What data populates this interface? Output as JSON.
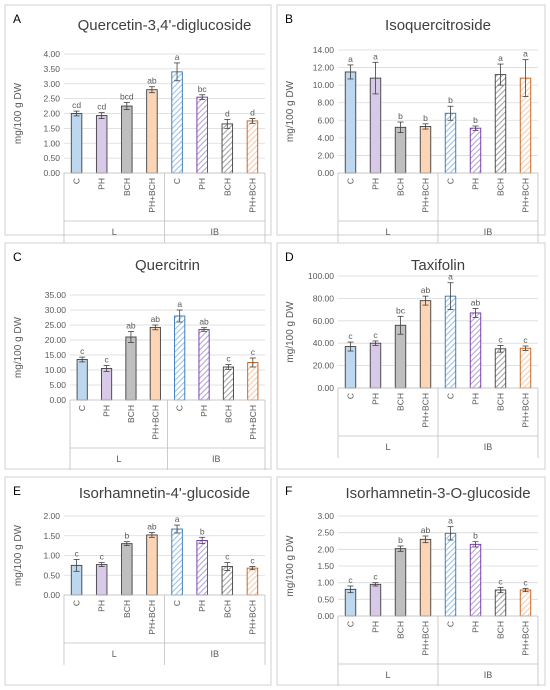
{
  "chart_data": [
    {
      "type": "bar",
      "panel": "A",
      "title": "Quercetin-3,4'-diglucoside",
      "ylabel": "mg/100 g DW",
      "ylim": [
        0,
        4
      ],
      "yticks": [
        "0.00",
        "0.50",
        "1.00",
        "1.50",
        "2.00",
        "2.50",
        "3.00",
        "3.50",
        "4.00"
      ],
      "categories": [
        "C",
        "PH",
        "BCH",
        "PH+BCH",
        "C",
        "PH",
        "BCH",
        "PH+BCH"
      ],
      "groups": [
        "L",
        "IB"
      ],
      "values": [
        2.0,
        1.93,
        2.25,
        2.8,
        3.4,
        2.55,
        1.65,
        1.75
      ],
      "errors": [
        0.08,
        0.1,
        0.12,
        0.1,
        0.3,
        0.08,
        0.15,
        0.08
      ],
      "letters": [
        "cd",
        "cd",
        "bcd",
        "ab",
        "a",
        "bc",
        "d",
        "d"
      ]
    },
    {
      "type": "bar",
      "panel": "B",
      "title": "Isoquercitroside",
      "ylabel": "mg/100 g DW",
      "ylim": [
        0,
        14
      ],
      "yticks": [
        "0.00",
        "2.00",
        "4.00",
        "6.00",
        "8.00",
        "10.00",
        "12.00",
        "14.00"
      ],
      "categories": [
        "C",
        "PH",
        "BCH",
        "PH+BCH",
        "C",
        "PH",
        "BCH",
        "PH+BCH"
      ],
      "groups": [
        "L",
        "IB"
      ],
      "values": [
        11.5,
        10.8,
        5.2,
        5.3,
        6.8,
        5.1,
        11.2,
        10.8
      ],
      "errors": [
        0.8,
        1.8,
        0.6,
        0.3,
        0.8,
        0.25,
        1.2,
        2.1
      ],
      "letters": [
        "a",
        "a",
        "b",
        "b",
        "b",
        "b",
        "a",
        "a"
      ]
    },
    {
      "type": "bar",
      "panel": "C",
      "title": "Quercitrin",
      "ylabel": "mg/100 g DW",
      "ylim": [
        0,
        35
      ],
      "yticks": [
        "0.00",
        "5.00",
        "10.00",
        "15.00",
        "20.00",
        "25.00",
        "30.00",
        "35.00"
      ],
      "categories": [
        "C",
        "PH",
        "BCH",
        "PH+BCH",
        "C",
        "PH",
        "BCH",
        "PH+BCH"
      ],
      "groups": [
        "L",
        "IB"
      ],
      "values": [
        13.5,
        10.5,
        21.0,
        24.2,
        28.0,
        23.5,
        11.0,
        12.5
      ],
      "errors": [
        0.8,
        1.0,
        1.8,
        0.8,
        2.0,
        0.6,
        0.8,
        1.5
      ],
      "letters": [
        "c",
        "c",
        "ab",
        "ab",
        "a",
        "ab",
        "c",
        "c"
      ]
    },
    {
      "type": "bar",
      "panel": "D",
      "title": "Taxifolin",
      "ylabel": "mg/100 g DW",
      "ylim": [
        0,
        100
      ],
      "yticks": [
        "0.00",
        "20.00",
        "40.00",
        "60.00",
        "80.00",
        "100.00"
      ],
      "categories": [
        "C",
        "PH",
        "BCH",
        "PH+BCH",
        "C",
        "PH",
        "BCH",
        "PH+BCH"
      ],
      "groups": [
        "L",
        "IB"
      ],
      "values": [
        37.0,
        40.0,
        56.0,
        78.0,
        82.0,
        67.0,
        35.0,
        35.5
      ],
      "errors": [
        4.0,
        2.0,
        8.0,
        4.0,
        12.0,
        4.0,
        3.0,
        2.0
      ],
      "letters": [
        "c",
        "c",
        "bc",
        "ab",
        "a",
        "ab",
        "c",
        "c"
      ]
    },
    {
      "type": "bar",
      "panel": "E",
      "title": "Isorhamnetin-4'-glucoside",
      "ylabel": "mg/100 g DW",
      "ylim": [
        0,
        2
      ],
      "yticks": [
        "0.00",
        "0.50",
        "1.00",
        "1.50",
        "2.00"
      ],
      "categories": [
        "C",
        "PH",
        "BCH",
        "PH+BCH",
        "C",
        "PH",
        "BCH",
        "PH+BCH"
      ],
      "groups": [
        "L",
        "IB"
      ],
      "values": [
        0.75,
        0.77,
        1.3,
        1.52,
        1.67,
        1.38,
        0.72,
        0.68
      ],
      "errors": [
        0.15,
        0.05,
        0.05,
        0.06,
        0.1,
        0.08,
        0.1,
        0.04
      ],
      "letters": [
        "c",
        "c",
        "b",
        "ab",
        "a",
        "b",
        "c",
        "c"
      ]
    },
    {
      "type": "bar",
      "panel": "F",
      "title": "Isorhamnetin-3-O-glucoside",
      "ylabel": "mg/100 g DW",
      "ylim": [
        0,
        3
      ],
      "yticks": [
        "0.00",
        "0.50",
        "1.00",
        "1.50",
        "2.00",
        "2.50",
        "3.00"
      ],
      "categories": [
        "C",
        "PH",
        "BCH",
        "PH+BCH",
        "C",
        "PH",
        "BCH",
        "PH+BCH"
      ],
      "groups": [
        "L",
        "IB"
      ],
      "values": [
        0.8,
        0.95,
        2.02,
        2.3,
        2.48,
        2.15,
        0.78,
        0.78
      ],
      "errors": [
        0.1,
        0.05,
        0.08,
        0.1,
        0.2,
        0.08,
        0.08,
        0.05
      ],
      "letters": [
        "c",
        "c",
        "b",
        "ab",
        "a",
        "b",
        "c",
        "c"
      ]
    }
  ],
  "colors": {
    "C": "#bdd7ee",
    "PH": "#d9c9e8",
    "BCH": "#bfbfbf",
    "PH+BCH": "#fbd5b5",
    "outline": "#404040"
  }
}
